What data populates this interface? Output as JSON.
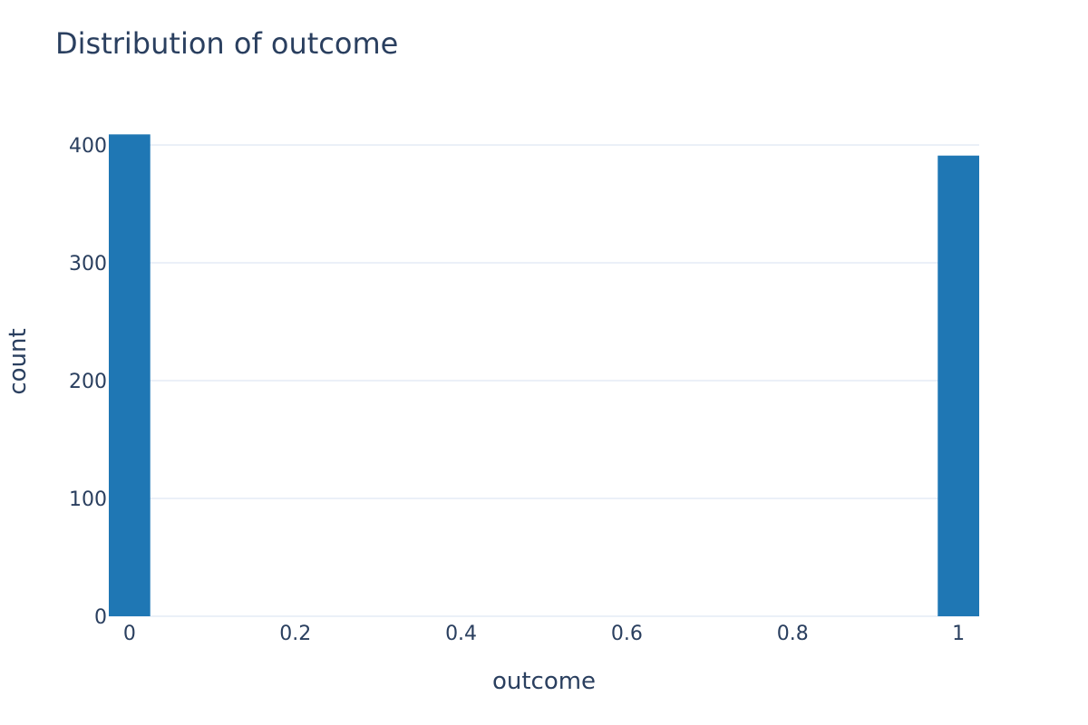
{
  "chart_data": {
    "type": "bar",
    "title": "Distribution of outcome",
    "xlabel": "outcome",
    "ylabel": "count",
    "x": [
      0,
      1
    ],
    "values": [
      409,
      391
    ],
    "bin_width": 0.05,
    "xlim": [
      -0.025,
      1.025
    ],
    "ylim": [
      0,
      400
    ],
    "xticks": [
      0,
      0.2,
      0.4,
      0.6,
      0.8,
      1
    ],
    "xtick_labels": [
      "0",
      "0.2",
      "0.4",
      "0.6",
      "0.8",
      "1"
    ],
    "yticks": [
      0,
      100,
      200,
      300,
      400
    ],
    "ytick_labels": [
      "0",
      "100",
      "200",
      "300",
      "400"
    ],
    "grid": true,
    "bar_color": "#1f77b4",
    "grid_color": "#ebf0f8",
    "text_color": "#2a3f5f"
  }
}
